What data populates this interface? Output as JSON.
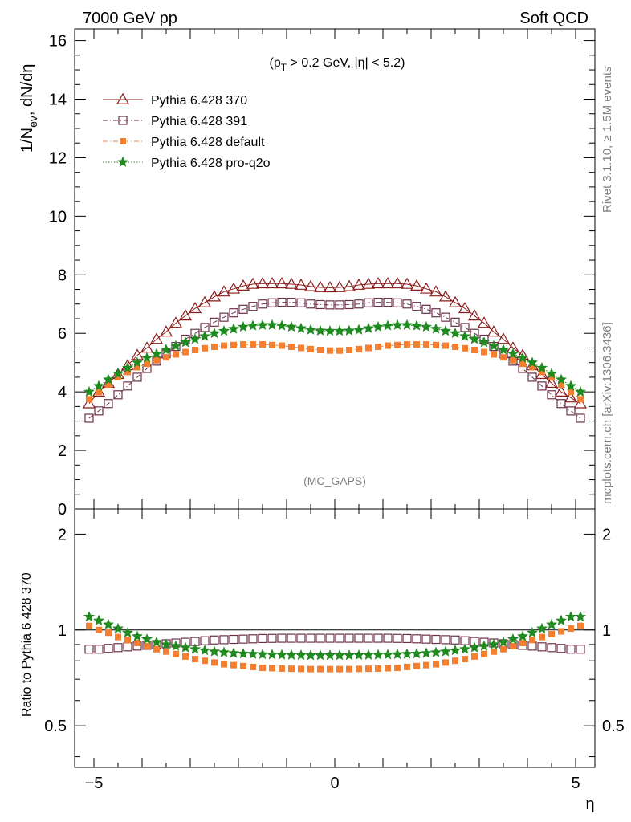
{
  "header": {
    "left": "7000 GeV pp",
    "right": "Soft QCD"
  },
  "side_text": {
    "top": "Rivet 3.1.10, ≥ 1.5M events",
    "bottom": "mcplots.cern.ch [arXiv:1306.3436]"
  },
  "chart_data": [
    {
      "type": "scatter",
      "title": "",
      "annotation": "(p_T > 0.2 GeV, |η| < 5.2)",
      "annotation_parts": {
        "p": "(p",
        "sub": "T",
        "rest": " > 0.2 GeV, |η| < 5.2)"
      },
      "watermark": "(MC_GAPS)",
      "ylabel": "1/N_ev, dN/dη",
      "ylabel_parts": {
        "a": "1/N",
        "sub": "ev",
        "b": ", dN/dη"
      },
      "xlabel": "η",
      "xlim": [
        -5.4,
        5.4
      ],
      "ylim": [
        0,
        16.4
      ],
      "yticks": [
        0,
        2,
        4,
        6,
        8,
        10,
        12,
        14,
        16
      ],
      "grid": false,
      "legend_position": "top-left",
      "x": [
        -5.1,
        -4.9,
        -4.7,
        -4.5,
        -4.3,
        -4.1,
        -3.9,
        -3.7,
        -3.5,
        -3.3,
        -3.1,
        -2.9,
        -2.7,
        -2.5,
        -2.3,
        -2.1,
        -1.9,
        -1.7,
        -1.5,
        -1.3,
        -1.1,
        -0.9,
        -0.7,
        -0.5,
        -0.3,
        -0.1,
        0.1,
        0.3,
        0.5,
        0.7,
        0.9,
        1.1,
        1.3,
        1.5,
        1.7,
        1.9,
        2.1,
        2.3,
        2.5,
        2.7,
        2.9,
        3.1,
        3.3,
        3.5,
        3.7,
        3.9,
        4.1,
        4.3,
        4.5,
        4.7,
        4.9,
        5.1
      ],
      "series": [
        {
          "name": "Pythia 6.428 370",
          "color": "#8b1a1a",
          "marker": "triangle-open",
          "line": "solid",
          "values": [
            3.6,
            4.0,
            4.3,
            4.6,
            4.9,
            5.25,
            5.5,
            5.8,
            6.05,
            6.35,
            6.6,
            6.85,
            7.05,
            7.25,
            7.42,
            7.52,
            7.62,
            7.68,
            7.7,
            7.7,
            7.7,
            7.68,
            7.65,
            7.6,
            7.57,
            7.56,
            7.57,
            7.6,
            7.65,
            7.68,
            7.7,
            7.7,
            7.7,
            7.68,
            7.62,
            7.52,
            7.42,
            7.25,
            7.05,
            6.85,
            6.6,
            6.35,
            6.05,
            5.8,
            5.5,
            5.25,
            4.9,
            4.6,
            4.3,
            4.0,
            3.8,
            3.6
          ]
        },
        {
          "name": "Pythia 6.428 391",
          "color": "#6b3049",
          "marker": "square-open",
          "line": "dash-dot",
          "values": [
            3.1,
            3.35,
            3.6,
            3.9,
            4.2,
            4.5,
            4.8,
            5.05,
            5.3,
            5.55,
            5.8,
            6.0,
            6.2,
            6.38,
            6.55,
            6.7,
            6.82,
            6.92,
            7.0,
            7.04,
            7.06,
            7.06,
            7.04,
            7.0,
            6.98,
            6.97,
            6.97,
            6.98,
            7.0,
            7.04,
            7.06,
            7.06,
            7.04,
            7.0,
            6.92,
            6.82,
            6.7,
            6.55,
            6.38,
            6.2,
            6.0,
            5.8,
            5.55,
            5.3,
            5.05,
            4.8,
            4.5,
            4.2,
            3.9,
            3.6,
            3.35,
            3.1
          ]
        },
        {
          "name": "Pythia 6.428 default",
          "color": "#f57f31",
          "marker": "square-filled",
          "line": "dash-dot",
          "values": [
            3.75,
            4.0,
            4.25,
            4.5,
            4.68,
            4.84,
            4.96,
            5.08,
            5.18,
            5.28,
            5.36,
            5.43,
            5.49,
            5.54,
            5.58,
            5.6,
            5.62,
            5.62,
            5.62,
            5.6,
            5.58,
            5.54,
            5.5,
            5.46,
            5.43,
            5.41,
            5.41,
            5.43,
            5.46,
            5.5,
            5.54,
            5.58,
            5.6,
            5.62,
            5.62,
            5.62,
            5.6,
            5.58,
            5.54,
            5.49,
            5.43,
            5.36,
            5.28,
            5.18,
            5.08,
            4.96,
            4.84,
            4.68,
            4.5,
            4.25,
            4.0,
            3.75
          ]
        },
        {
          "name": "Pythia 6.428 pro-q2o",
          "color": "#1f8a1f",
          "marker": "star",
          "line": "dotted",
          "values": [
            4.0,
            4.2,
            4.42,
            4.62,
            4.82,
            5.0,
            5.16,
            5.3,
            5.44,
            5.57,
            5.69,
            5.8,
            5.9,
            6.0,
            6.08,
            6.15,
            6.22,
            6.26,
            6.28,
            6.28,
            6.26,
            6.22,
            6.17,
            6.12,
            6.09,
            6.08,
            6.08,
            6.09,
            6.12,
            6.17,
            6.22,
            6.26,
            6.28,
            6.28,
            6.26,
            6.22,
            6.15,
            6.08,
            6.0,
            5.9,
            5.8,
            5.69,
            5.57,
            5.44,
            5.3,
            5.16,
            5.0,
            4.82,
            4.62,
            4.42,
            4.2,
            4.0
          ]
        }
      ]
    },
    {
      "type": "scatter",
      "title": "",
      "ylabel": "Ratio to Pythia 6.428 370",
      "xlabel": "η",
      "xlim": [
        -5.4,
        5.4
      ],
      "ylim": [
        0.37,
        2.4
      ],
      "ylog": true,
      "yticks": [
        0.5,
        1,
        2
      ],
      "xticks": [
        -5,
        0,
        5
      ],
      "reference_line": 1,
      "grid": false,
      "x": [
        -5.1,
        -4.9,
        -4.7,
        -4.5,
        -4.3,
        -4.1,
        -3.9,
        -3.7,
        -3.5,
        -3.3,
        -3.1,
        -2.9,
        -2.7,
        -2.5,
        -2.3,
        -2.1,
        -1.9,
        -1.7,
        -1.5,
        -1.3,
        -1.1,
        -0.9,
        -0.7,
        -0.5,
        -0.3,
        -0.1,
        0.1,
        0.3,
        0.5,
        0.7,
        0.9,
        1.1,
        1.3,
        1.5,
        1.7,
        1.9,
        2.1,
        2.3,
        2.5,
        2.7,
        2.9,
        3.1,
        3.3,
        3.5,
        3.7,
        3.9,
        4.1,
        4.3,
        4.5,
        4.7,
        4.9,
        5.1
      ],
      "series": [
        {
          "name": "Pythia 6.428 391",
          "color": "#6b3049",
          "marker": "square-open",
          "values": [
            0.87,
            0.87,
            0.875,
            0.88,
            0.885,
            0.89,
            0.895,
            0.9,
            0.905,
            0.91,
            0.915,
            0.92,
            0.925,
            0.93,
            0.932,
            0.934,
            0.936,
            0.938,
            0.94,
            0.941,
            0.942,
            0.942,
            0.942,
            0.942,
            0.942,
            0.942,
            0.942,
            0.942,
            0.942,
            0.942,
            0.942,
            0.942,
            0.941,
            0.94,
            0.938,
            0.936,
            0.934,
            0.932,
            0.93,
            0.925,
            0.92,
            0.915,
            0.91,
            0.905,
            0.9,
            0.895,
            0.89,
            0.885,
            0.88,
            0.875,
            0.87,
            0.87
          ]
        },
        {
          "name": "Pythia 6.428 default",
          "color": "#f57f31",
          "marker": "square-filled",
          "values": [
            1.03,
            1.0,
            0.98,
            0.95,
            0.93,
            0.91,
            0.89,
            0.87,
            0.855,
            0.84,
            0.825,
            0.81,
            0.8,
            0.79,
            0.78,
            0.775,
            0.77,
            0.765,
            0.76,
            0.758,
            0.756,
            0.755,
            0.754,
            0.753,
            0.753,
            0.753,
            0.753,
            0.753,
            0.754,
            0.755,
            0.756,
            0.758,
            0.76,
            0.765,
            0.77,
            0.775,
            0.78,
            0.79,
            0.8,
            0.81,
            0.825,
            0.84,
            0.855,
            0.87,
            0.89,
            0.91,
            0.93,
            0.95,
            0.97,
            0.99,
            1.01,
            1.03
          ]
        },
        {
          "name": "Pythia 6.428 pro-q2o",
          "color": "#1f8a1f",
          "marker": "star",
          "values": [
            1.1,
            1.07,
            1.04,
            1.01,
            0.98,
            0.955,
            0.935,
            0.915,
            0.9,
            0.89,
            0.88,
            0.87,
            0.862,
            0.855,
            0.85,
            0.845,
            0.842,
            0.84,
            0.838,
            0.836,
            0.835,
            0.834,
            0.833,
            0.832,
            0.832,
            0.832,
            0.832,
            0.832,
            0.833,
            0.834,
            0.835,
            0.836,
            0.838,
            0.84,
            0.842,
            0.845,
            0.85,
            0.855,
            0.862,
            0.87,
            0.88,
            0.89,
            0.9,
            0.915,
            0.935,
            0.955,
            0.98,
            1.01,
            1.04,
            1.07,
            1.1,
            1.1
          ]
        }
      ]
    }
  ]
}
